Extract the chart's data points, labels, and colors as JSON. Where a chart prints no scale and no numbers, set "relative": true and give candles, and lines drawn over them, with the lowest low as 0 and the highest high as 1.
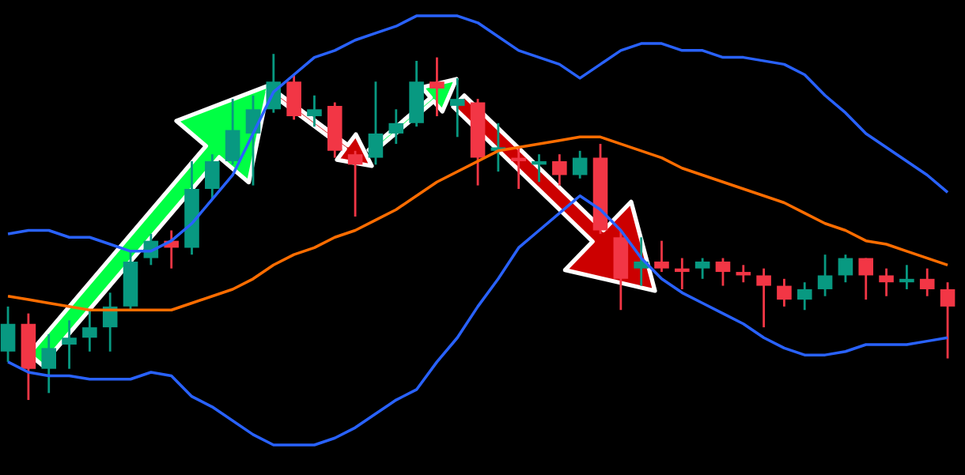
{
  "chart_data": {
    "type": "candlestick",
    "relative": true,
    "categories": [
      null,
      null,
      null,
      null,
      null,
      null,
      null,
      null,
      null,
      null,
      null,
      null,
      null,
      null,
      null,
      null,
      null,
      null,
      null,
      null,
      null,
      null,
      null,
      null,
      null,
      null,
      null,
      null,
      null,
      null,
      null,
      null,
      null,
      null,
      null,
      null,
      null,
      null,
      null,
      null,
      null,
      null,
      null,
      null,
      null,
      null,
      null
    ],
    "ohlc": [
      [
        0.14,
        0.27,
        0.11,
        0.22
      ],
      [
        0.22,
        0.25,
        0,
        0.09
      ],
      [
        0.09,
        0.19,
        0.02,
        0.15
      ],
      [
        0.16,
        0.23,
        0.09,
        0.18
      ],
      [
        0.18,
        0.26,
        0.14,
        0.21
      ],
      [
        0.21,
        0.31,
        0.14,
        0.27
      ],
      [
        0.27,
        0.43,
        0.26,
        0.4
      ],
      [
        0.41,
        0.48,
        0.39,
        0.46
      ],
      [
        0.46,
        0.49,
        0.38,
        0.44
      ],
      [
        0.44,
        0.69,
        0.42,
        0.61
      ],
      [
        0.61,
        0.71,
        0.58,
        0.69
      ],
      [
        0.69,
        0.87,
        0.68,
        0.78
      ],
      [
        0.77,
        0.88,
        0.62,
        0.84
      ],
      [
        0.84,
        1,
        0.83,
        0.92
      ],
      [
        0.92,
        0.94,
        0.81,
        0.82
      ],
      [
        0.82,
        0.88,
        0.79,
        0.84
      ],
      [
        0.85,
        0.86,
        0.7,
        0.72
      ],
      [
        0.71,
        0.72,
        0.53,
        0.68
      ],
      [
        0.7,
        0.92,
        0.68,
        0.77
      ],
      [
        0.77,
        0.84,
        0.74,
        0.8
      ],
      [
        0.8,
        0.98,
        0.79,
        0.92
      ],
      [
        0.92,
        0.99,
        0.82,
        0.9
      ],
      [
        0.85,
        0.93,
        0.76,
        0.87
      ],
      [
        0.86,
        0.87,
        0.62,
        0.7
      ],
      [
        0.72,
        0.8,
        0.66,
        0.73
      ],
      [
        0.7,
        0.73,
        0.61,
        0.69
      ],
      [
        0.68,
        0.71,
        0.63,
        0.69
      ],
      [
        0.69,
        0.71,
        0.62,
        0.65
      ],
      [
        0.65,
        0.72,
        0.64,
        0.7
      ],
      [
        0.7,
        0.74,
        0.48,
        0.49
      ],
      [
        0.47,
        0.49,
        0.26,
        0.35
      ],
      [
        0.38,
        0.47,
        0.33,
        0.4
      ],
      [
        0.4,
        0.46,
        0.37,
        0.38
      ],
      [
        0.38,
        0.41,
        0.32,
        0.37
      ],
      [
        0.38,
        0.41,
        0.35,
        0.4
      ],
      [
        0.4,
        0.41,
        0.33,
        0.37
      ],
      [
        0.37,
        0.39,
        0.34,
        0.36
      ],
      [
        0.36,
        0.38,
        0.21,
        0.33
      ],
      [
        0.33,
        0.35,
        0.27,
        0.29
      ],
      [
        0.29,
        0.34,
        0.26,
        0.32
      ],
      [
        0.32,
        0.42,
        0.3,
        0.36
      ],
      [
        0.36,
        0.42,
        0.34,
        0.41
      ],
      [
        0.41,
        0.41,
        0.29,
        0.36
      ],
      [
        0.36,
        0.38,
        0.3,
        0.34
      ],
      [
        0.34,
        0.39,
        0.32,
        0.35
      ],
      [
        0.35,
        0.38,
        0.3,
        0.32
      ],
      [
        0.32,
        0.34,
        0.12,
        0.27
      ]
    ],
    "colors": [
      "#089981",
      "#f23645",
      "#089981",
      "#089981",
      "#089981",
      "#089981",
      "#089981",
      "#089981",
      "#f23645",
      "#089981",
      "#089981",
      "#089981",
      "#089981",
      "#089981",
      "#f23645",
      "#089981",
      "#f23645",
      "#f23645",
      "#089981",
      "#089981",
      "#089981",
      "#f23645",
      "#089981",
      "#f23645",
      "#089981",
      "#f23645",
      "#089981",
      "#f23645",
      "#089981",
      "#f23645",
      "#f23645",
      "#089981",
      "#f23645",
      "#f23645",
      "#089981",
      "#f23645",
      "#f23645",
      "#f23645",
      "#f23645",
      "#089981",
      "#089981",
      "#089981",
      "#f23645",
      "#f23645",
      "#089981",
      "#f23645",
      "#f23645"
    ],
    "series": [
      {
        "type": "line",
        "color": "#2962ff",
        "values": [
          0.48,
          0.49,
          0.49,
          0.47,
          0.47,
          0.45,
          0.43,
          0.43,
          0.46,
          0.51,
          0.58,
          0.65,
          0.77,
          0.89,
          0.94,
          0.99,
          1.01,
          1.04,
          1.06,
          1.08,
          1.11,
          1.11,
          1.11,
          1.09,
          1.05,
          1.01,
          0.99,
          0.97,
          0.93,
          0.97,
          1.01,
          1.03,
          1.03,
          1.01,
          1.01,
          0.99,
          0.99,
          0.98,
          0.97,
          0.94,
          0.88,
          0.83,
          0.77,
          0.73,
          0.69,
          0.65,
          0.6
        ]
      },
      {
        "type": "line",
        "color": "#ff6d00",
        "values": [
          0.3,
          0.29,
          0.28,
          0.27,
          0.26,
          0.26,
          0.26,
          0.26,
          0.26,
          0.28,
          0.3,
          0.32,
          0.35,
          0.39,
          0.42,
          0.44,
          0.47,
          0.49,
          0.52,
          0.55,
          0.59,
          0.63,
          0.66,
          0.69,
          0.72,
          0.73,
          0.74,
          0.75,
          0.76,
          0.76,
          0.74,
          0.72,
          0.7,
          0.67,
          0.65,
          0.63,
          0.61,
          0.59,
          0.57,
          0.54,
          0.51,
          0.49,
          0.46,
          0.45,
          0.43,
          0.41,
          0.39
        ]
      },
      {
        "type": "line",
        "color": "#2962ff",
        "values": [
          0.11,
          0.08,
          0.07,
          0.07,
          0.06,
          0.06,
          0.06,
          0.08,
          0.07,
          0.01,
          -0.02,
          -0.06,
          -0.1,
          -0.13,
          -0.13,
          -0.13,
          -0.11,
          -0.08,
          -0.04,
          0.0,
          0.03,
          0.11,
          0.18,
          0.27,
          0.35,
          0.44,
          0.49,
          0.54,
          0.59,
          0.55,
          0.49,
          0.41,
          0.35,
          0.31,
          0.28,
          0.25,
          0.22,
          0.18,
          0.15,
          0.13,
          0.13,
          0.14,
          0.16,
          0.16,
          0.16,
          0.17,
          0.18
        ]
      }
    ]
  }
}
